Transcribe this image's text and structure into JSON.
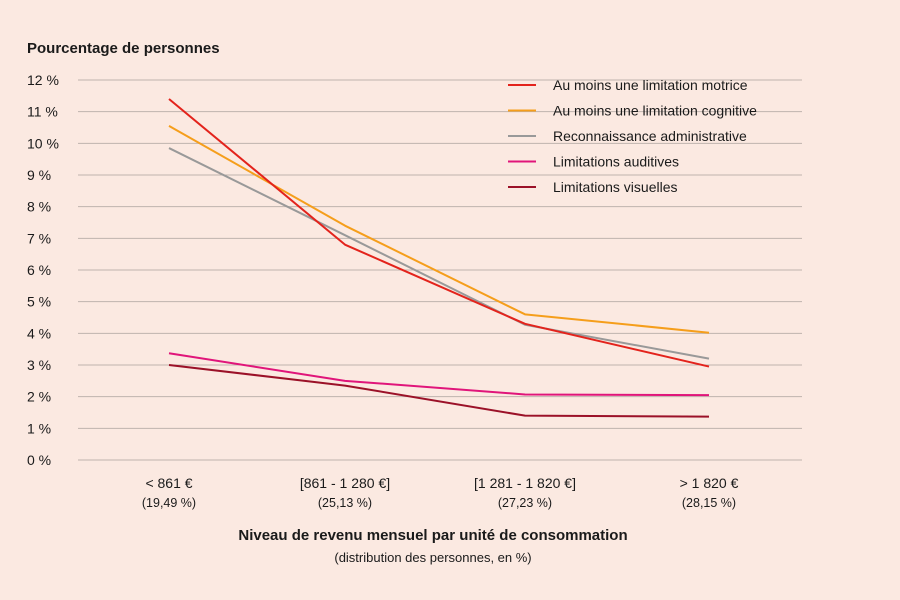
{
  "chart_data": {
    "type": "line",
    "ylabel": "Pourcentage de personnes",
    "xlabel": "Niveau de revenu mensuel par unité de consommation",
    "xlabel_sub": "(distribution des personnes, en %)",
    "categories": [
      {
        "label": "< 861 €",
        "sub": "(19,49 %)"
      },
      {
        "label": "[861 - 1 280 €]",
        "sub": "(25,13 %)"
      },
      {
        "label": "[1 281 - 1 820 €]",
        "sub": "(27,23 %)"
      },
      {
        "label": "> 1 820 €",
        "sub": "(28,15 %)"
      }
    ],
    "yticks": [
      "0 %",
      "1 %",
      "2 %",
      "3 %",
      "4 %",
      "5 %",
      "6 %",
      "7 %",
      "8 %",
      "9 %",
      "10 %",
      "11 %",
      "12 %"
    ],
    "ylim": [
      0,
      12
    ],
    "grid": true,
    "legend_position": "top-right",
    "series": [
      {
        "name": "Au moins une limitation motrice",
        "color": "#e3231c",
        "values": [
          11.4,
          6.8,
          4.3,
          2.95
        ]
      },
      {
        "name": "Au moins une limitation cognitive",
        "color": "#f59e1b",
        "values": [
          10.55,
          7.4,
          4.6,
          4.02
        ]
      },
      {
        "name": "Reconnaissance administrative",
        "color": "#999999",
        "values": [
          9.85,
          7.1,
          4.27,
          3.2
        ]
      },
      {
        "name": "Limitations auditives",
        "color": "#e0157a",
        "values": [
          3.37,
          2.5,
          2.07,
          2.05
        ]
      },
      {
        "name": "Limitations visuelles",
        "color": "#9b1128",
        "values": [
          3.0,
          2.35,
          1.4,
          1.37
        ]
      }
    ]
  }
}
